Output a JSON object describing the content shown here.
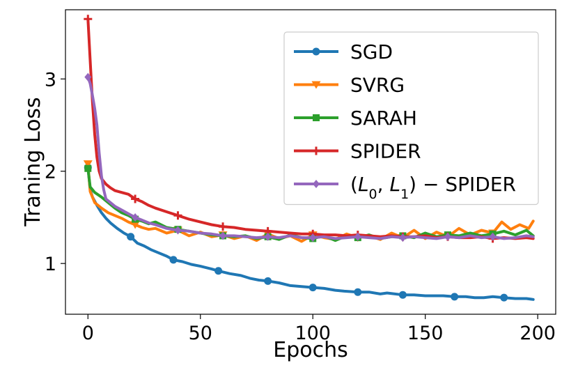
{
  "chart_data": {
    "type": "line",
    "xlabel": "Epochs",
    "ylabel": "Traning Loss",
    "xlim": [
      -10,
      208
    ],
    "ylim": [
      0.45,
      3.75
    ],
    "xticks": [
      0,
      50,
      100,
      150,
      200
    ],
    "yticks": [
      1,
      2,
      3
    ],
    "grid": false,
    "legend_position": "top-right",
    "series": [
      {
        "name": "SGD",
        "color": "#1f77b4",
        "marker": "circle",
        "x": [
          0,
          1,
          2,
          4,
          6,
          8,
          10,
          13,
          16,
          19,
          22,
          25,
          28,
          31,
          35,
          38,
          42,
          46,
          50,
          55,
          58,
          63,
          68,
          72,
          76,
          80,
          85,
          90,
          95,
          100,
          105,
          110,
          114,
          120,
          125,
          130,
          133,
          140,
          145,
          150,
          153,
          158,
          163,
          168,
          172,
          176,
          180,
          185,
          190,
          195,
          198
        ],
        "y": [
          2.04,
          1.8,
          1.72,
          1.63,
          1.55,
          1.49,
          1.44,
          1.38,
          1.33,
          1.29,
          1.22,
          1.19,
          1.15,
          1.12,
          1.08,
          1.04,
          1.02,
          0.99,
          0.97,
          0.94,
          0.92,
          0.89,
          0.87,
          0.84,
          0.82,
          0.81,
          0.79,
          0.76,
          0.75,
          0.74,
          0.73,
          0.71,
          0.7,
          0.69,
          0.69,
          0.67,
          0.68,
          0.66,
          0.66,
          0.65,
          0.65,
          0.65,
          0.64,
          0.64,
          0.63,
          0.63,
          0.64,
          0.63,
          0.62,
          0.62,
          0.61
        ]
      },
      {
        "name": "SVRG",
        "color": "#ff7f0e",
        "marker": "triangle-down",
        "x": [
          0,
          1,
          3,
          6,
          9,
          12,
          15,
          18,
          21,
          24,
          27,
          30,
          35,
          40,
          45,
          50,
          55,
          60,
          65,
          70,
          75,
          80,
          85,
          90,
          95,
          100,
          105,
          110,
          115,
          120,
          125,
          130,
          135,
          140,
          145,
          150,
          155,
          160,
          165,
          170,
          175,
          180,
          184,
          188,
          192,
          196,
          198
        ],
        "y": [
          2.08,
          1.78,
          1.66,
          1.6,
          1.55,
          1.52,
          1.49,
          1.45,
          1.42,
          1.39,
          1.37,
          1.38,
          1.33,
          1.36,
          1.3,
          1.34,
          1.29,
          1.31,
          1.27,
          1.3,
          1.25,
          1.32,
          1.27,
          1.3,
          1.24,
          1.31,
          1.28,
          1.26,
          1.32,
          1.28,
          1.3,
          1.26,
          1.33,
          1.28,
          1.36,
          1.27,
          1.34,
          1.29,
          1.38,
          1.31,
          1.36,
          1.33,
          1.45,
          1.37,
          1.42,
          1.38,
          1.46
        ]
      },
      {
        "name": "SARAH",
        "color": "#2ca02c",
        "marker": "square",
        "x": [
          0,
          1,
          3,
          6,
          9,
          12,
          15,
          18,
          21,
          24,
          27,
          30,
          35,
          40,
          45,
          50,
          55,
          60,
          65,
          70,
          75,
          80,
          85,
          90,
          95,
          100,
          105,
          110,
          115,
          120,
          125,
          130,
          135,
          140,
          145,
          150,
          155,
          160,
          165,
          170,
          175,
          180,
          185,
          190,
          195,
          198
        ],
        "y": [
          2.03,
          1.83,
          1.77,
          1.72,
          1.66,
          1.6,
          1.55,
          1.52,
          1.48,
          1.46,
          1.43,
          1.45,
          1.39,
          1.37,
          1.35,
          1.33,
          1.31,
          1.3,
          1.29,
          1.3,
          1.27,
          1.29,
          1.26,
          1.31,
          1.28,
          1.27,
          1.3,
          1.25,
          1.3,
          1.28,
          1.31,
          1.27,
          1.29,
          1.3,
          1.28,
          1.33,
          1.29,
          1.31,
          1.3,
          1.33,
          1.3,
          1.32,
          1.35,
          1.31,
          1.36,
          1.3
        ]
      },
      {
        "name": "SPIDER",
        "color": "#d62728",
        "marker": "plus",
        "x": [
          0,
          1,
          2,
          3,
          4,
          5,
          6,
          8,
          10,
          12,
          15,
          18,
          21,
          24,
          27,
          30,
          35,
          40,
          45,
          50,
          55,
          60,
          65,
          70,
          75,
          80,
          85,
          90,
          95,
          100,
          105,
          110,
          115,
          120,
          125,
          130,
          135,
          140,
          145,
          150,
          155,
          160,
          165,
          170,
          175,
          180,
          185,
          190,
          195,
          198
        ],
        "y": [
          3.65,
          3.2,
          2.75,
          2.4,
          2.15,
          2.0,
          1.92,
          1.86,
          1.82,
          1.79,
          1.77,
          1.75,
          1.7,
          1.67,
          1.63,
          1.6,
          1.56,
          1.52,
          1.48,
          1.45,
          1.42,
          1.4,
          1.39,
          1.37,
          1.36,
          1.35,
          1.34,
          1.33,
          1.32,
          1.32,
          1.31,
          1.31,
          1.3,
          1.31,
          1.3,
          1.29,
          1.3,
          1.29,
          1.29,
          1.3,
          1.28,
          1.29,
          1.28,
          1.28,
          1.29,
          1.27,
          1.28,
          1.27,
          1.28,
          1.27
        ]
      },
      {
        "name": "(L0, L1) − SPIDER",
        "color": "#9467bd",
        "marker": "diamond",
        "x": [
          0,
          1,
          2,
          3,
          4,
          5,
          6,
          7,
          8,
          10,
          12,
          15,
          18,
          21,
          24,
          27,
          30,
          35,
          40,
          45,
          50,
          55,
          60,
          65,
          70,
          75,
          80,
          85,
          90,
          95,
          100,
          105,
          110,
          115,
          120,
          125,
          130,
          135,
          140,
          145,
          150,
          155,
          160,
          165,
          170,
          175,
          180,
          185,
          190,
          195,
          198
        ],
        "y": [
          3.02,
          2.95,
          2.82,
          2.68,
          2.5,
          2.2,
          1.95,
          1.8,
          1.7,
          1.66,
          1.62,
          1.58,
          1.54,
          1.5,
          1.47,
          1.44,
          1.42,
          1.38,
          1.36,
          1.35,
          1.33,
          1.32,
          1.3,
          1.3,
          1.29,
          1.28,
          1.29,
          1.28,
          1.3,
          1.28,
          1.28,
          1.29,
          1.27,
          1.28,
          1.29,
          1.28,
          1.27,
          1.29,
          1.28,
          1.29,
          1.28,
          1.27,
          1.29,
          1.28,
          1.3,
          1.28,
          1.29,
          1.27,
          1.28,
          1.3,
          1.29
        ]
      }
    ]
  }
}
